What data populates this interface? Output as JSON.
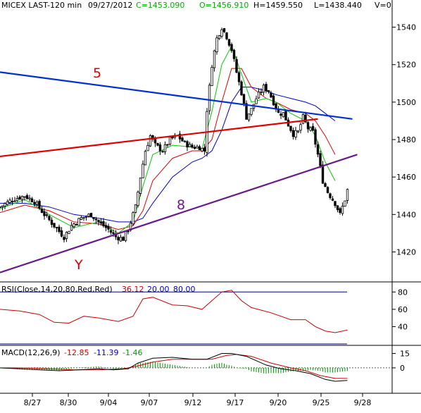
{
  "header": {
    "symbol": "MICEX LAST-120 min",
    "date": "09/27/2012",
    "close": "C=1453.090",
    "open": "O=1456.910",
    "high": "H=1459.550",
    "low": "L=1438.440",
    "volume": "V=0"
  },
  "colors": {
    "background": "#ffffff",
    "up_candle": "#ffffff",
    "down_candle": "#000000",
    "ma_fast": "#00cc00",
    "ma_mid": "#e00000",
    "ma_slow": "#0000cc",
    "trend_5": "#0030d0",
    "trend_red": "#e00000",
    "trend_8": "#6a1a8a",
    "rsi_line": "#d00000",
    "rsi_levels": "#000080",
    "macd_line": "#000000",
    "macd_signal": "#d00000",
    "macd_hist": "#00a000"
  },
  "annotations": {
    "label_5": "5",
    "label_8": "8",
    "label_y": "Y"
  },
  "panels": {
    "rsi_label": "RSI(Close,14,20,80,Red,Red)",
    "rsi_value": "36.12",
    "rsi_low": "20.00",
    "rsi_high": "80.00",
    "macd_label": "MACD(12,26,9)",
    "macd_value": "-12.85",
    "macd_signal_value": "-11.39",
    "macd_hist_value": "-1.46"
  },
  "chart_data": {
    "type": "candlestick",
    "timeframe": "120 min",
    "x_ticks": [
      "8/27",
      "8/30",
      "9/04",
      "9/07",
      "9/12",
      "9/17",
      "9/20",
      "9/25",
      "9/28"
    ],
    "price_axis": {
      "ticks": [
        1420,
        1440,
        1460,
        1480,
        1500,
        1520,
        1540
      ],
      "range": [
        1407,
        1547
      ]
    },
    "price_path": [
      [
        0,
        1444
      ],
      [
        5,
        1448
      ],
      [
        10,
        1450
      ],
      [
        14,
        1447
      ],
      [
        18,
        1440
      ],
      [
        22,
        1434
      ],
      [
        26,
        1428
      ],
      [
        29,
        1434
      ],
      [
        33,
        1438
      ],
      [
        37,
        1440
      ],
      [
        40,
        1436
      ],
      [
        44,
        1432
      ],
      [
        47,
        1428
      ],
      [
        50,
        1427
      ],
      [
        52,
        1432
      ],
      [
        55,
        1444
      ],
      [
        57,
        1460
      ],
      [
        59,
        1474
      ],
      [
        61,
        1482
      ],
      [
        63,
        1477
      ],
      [
        66,
        1474
      ],
      [
        69,
        1480
      ],
      [
        72,
        1482
      ],
      [
        75,
        1478
      ],
      [
        78,
        1476
      ],
      [
        81,
        1476
      ],
      [
        83,
        1474
      ],
      [
        84,
        1496
      ],
      [
        86,
        1520
      ],
      [
        88,
        1534
      ],
      [
        90,
        1540
      ],
      [
        92,
        1535
      ],
      [
        94,
        1528
      ],
      [
        96,
        1516
      ],
      [
        98,
        1505
      ],
      [
        100,
        1492
      ],
      [
        102,
        1496
      ],
      [
        104,
        1502
      ],
      [
        107,
        1508
      ],
      [
        109,
        1506
      ],
      [
        111,
        1500
      ],
      [
        113,
        1494
      ],
      [
        115,
        1494
      ],
      [
        117,
        1488
      ],
      [
        119,
        1483
      ],
      [
        121,
        1484
      ],
      [
        123,
        1492
      ],
      [
        125,
        1486
      ],
      [
        127,
        1484
      ],
      [
        129,
        1472
      ],
      [
        131,
        1458
      ],
      [
        133,
        1452
      ],
      [
        136,
        1446
      ],
      [
        138,
        1440
      ],
      [
        140,
        1448
      ],
      [
        141,
        1453
      ]
    ],
    "ma_fast_path": [
      [
        0,
        1443
      ],
      [
        10,
        1448
      ],
      [
        20,
        1440
      ],
      [
        30,
        1433
      ],
      [
        40,
        1436
      ],
      [
        48,
        1430
      ],
      [
        54,
        1436
      ],
      [
        58,
        1455
      ],
      [
        62,
        1472
      ],
      [
        70,
        1477
      ],
      [
        78,
        1476
      ],
      [
        82,
        1475
      ],
      [
        86,
        1495
      ],
      [
        90,
        1520
      ],
      [
        94,
        1530
      ],
      [
        98,
        1515
      ],
      [
        102,
        1500
      ],
      [
        108,
        1502
      ],
      [
        112,
        1500
      ],
      [
        118,
        1494
      ],
      [
        124,
        1490
      ],
      [
        128,
        1482
      ],
      [
        132,
        1468
      ],
      [
        136,
        1458
      ]
    ],
    "ma_mid_path": [
      [
        0,
        1441
      ],
      [
        10,
        1445
      ],
      [
        20,
        1442
      ],
      [
        30,
        1436
      ],
      [
        40,
        1435
      ],
      [
        48,
        1432
      ],
      [
        54,
        1434
      ],
      [
        58,
        1442
      ],
      [
        62,
        1458
      ],
      [
        70,
        1470
      ],
      [
        78,
        1474
      ],
      [
        82,
        1474
      ],
      [
        86,
        1480
      ],
      [
        90,
        1500
      ],
      [
        94,
        1518
      ],
      [
        98,
        1518
      ],
      [
        102,
        1508
      ],
      [
        108,
        1502
      ],
      [
        112,
        1500
      ],
      [
        118,
        1496
      ],
      [
        124,
        1494
      ],
      [
        128,
        1490
      ],
      [
        132,
        1482
      ],
      [
        136,
        1472
      ]
    ],
    "ma_slow_path": [
      [
        0,
        1446
      ],
      [
        10,
        1446
      ],
      [
        20,
        1444
      ],
      [
        30,
        1440
      ],
      [
        40,
        1438
      ],
      [
        48,
        1436
      ],
      [
        54,
        1436
      ],
      [
        58,
        1438
      ],
      [
        62,
        1446
      ],
      [
        70,
        1460
      ],
      [
        78,
        1468
      ],
      [
        82,
        1470
      ],
      [
        86,
        1474
      ],
      [
        90,
        1485
      ],
      [
        94,
        1500
      ],
      [
        98,
        1508
      ],
      [
        102,
        1508
      ],
      [
        108,
        1506
      ],
      [
        112,
        1504
      ],
      [
        118,
        1502
      ],
      [
        124,
        1500
      ],
      [
        128,
        1498
      ],
      [
        132,
        1494
      ],
      [
        136,
        1490
      ]
    ],
    "trendlines": [
      {
        "label": "5",
        "start": [
          0,
          1516
        ],
        "end": [
          143,
          1491
        ]
      },
      {
        "label": "",
        "start": [
          0,
          1471
        ],
        "end": [
          129,
          1491
        ]
      },
      {
        "label": "8",
        "start": [
          0,
          1409
        ],
        "end": [
          145,
          1472
        ]
      }
    ],
    "rsi": {
      "range": [
        20,
        90
      ],
      "ticks": [
        40,
        60,
        80
      ],
      "levels": [
        20,
        80
      ],
      "path": [
        [
          0,
          60
        ],
        [
          8,
          58
        ],
        [
          16,
          54
        ],
        [
          22,
          45
        ],
        [
          28,
          44
        ],
        [
          34,
          52
        ],
        [
          40,
          50
        ],
        [
          48,
          46
        ],
        [
          54,
          52
        ],
        [
          58,
          72
        ],
        [
          62,
          74
        ],
        [
          70,
          65
        ],
        [
          76,
          64
        ],
        [
          82,
          60
        ],
        [
          86,
          70
        ],
        [
          90,
          80
        ],
        [
          94,
          82
        ],
        [
          98,
          70
        ],
        [
          102,
          62
        ],
        [
          110,
          56
        ],
        [
          118,
          48
        ],
        [
          124,
          48
        ],
        [
          128,
          40
        ],
        [
          132,
          35
        ],
        [
          136,
          33
        ],
        [
          141,
          36
        ]
      ]
    },
    "macd": {
      "range": [
        -25,
        22
      ],
      "ticks": [
        0,
        15
      ],
      "line_path": [
        [
          0,
          0
        ],
        [
          8,
          -1
        ],
        [
          16,
          -2
        ],
        [
          24,
          -3
        ],
        [
          32,
          -2
        ],
        [
          40,
          -1
        ],
        [
          46,
          -2
        ],
        [
          52,
          -1
        ],
        [
          56,
          5
        ],
        [
          62,
          10
        ],
        [
          70,
          11
        ],
        [
          78,
          9
        ],
        [
          84,
          9
        ],
        [
          90,
          15
        ],
        [
          94,
          15
        ],
        [
          100,
          12
        ],
        [
          108,
          3
        ],
        [
          114,
          -1
        ],
        [
          120,
          -3
        ],
        [
          126,
          -6
        ],
        [
          132,
          -12
        ],
        [
          136,
          -14
        ],
        [
          141,
          -13
        ]
      ],
      "signal_path": [
        [
          0,
          0
        ],
        [
          10,
          0
        ],
        [
          20,
          -1
        ],
        [
          30,
          -2
        ],
        [
          40,
          -2
        ],
        [
          50,
          -1
        ],
        [
          56,
          2
        ],
        [
          62,
          6
        ],
        [
          70,
          9
        ],
        [
          78,
          9
        ],
        [
          86,
          9
        ],
        [
          92,
          13
        ],
        [
          96,
          14
        ],
        [
          102,
          12
        ],
        [
          110,
          5
        ],
        [
          118,
          0
        ],
        [
          124,
          -3
        ],
        [
          130,
          -8
        ],
        [
          136,
          -11
        ],
        [
          141,
          -11
        ]
      ]
    }
  }
}
